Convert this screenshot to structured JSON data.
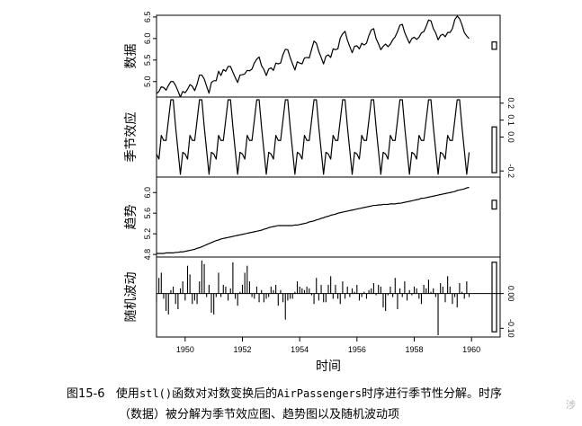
{
  "caption": {
    "fig_no": "图15-6",
    "part1": "使用",
    "code": "stl()",
    "part2": "函数对对数变换后的",
    "code2": "AirPassengers",
    "part3": "时序进行季节性分解。时序",
    "line2": "（数据）被分解为季节效应图、趋势图以及随机波动项"
  },
  "side_char": "涉",
  "chart_data": {
    "type": "line",
    "xlabel": "时间",
    "x_ticks": [
      1950,
      1952,
      1954,
      1956,
      1958,
      1960
    ],
    "xlim": [
      1949,
      1961
    ],
    "panels": [
      {
        "name": "数据",
        "type": "line",
        "ylim": [
          4.64,
          6.54
        ],
        "y_ticks": [
          "5.0",
          "5.5",
          "6.0",
          "6.5"
        ],
        "tick_side": "left",
        "values": [
          4.72,
          4.77,
          4.88,
          4.86,
          4.8,
          4.91,
          5.0,
          5.0,
          4.91,
          4.78,
          4.64,
          4.77,
          4.74,
          4.82,
          4.93,
          4.89,
          4.79,
          4.94,
          5.15,
          5.15,
          5.06,
          4.89,
          4.73,
          4.98,
          5.02,
          5.02,
          5.24,
          5.14,
          5.28,
          5.24,
          5.35,
          5.35,
          5.22,
          5.09,
          4.98,
          5.15,
          5.16,
          5.18,
          5.26,
          5.25,
          5.29,
          5.43,
          5.52,
          5.57,
          5.37,
          5.28,
          5.14,
          5.29,
          5.32,
          5.26,
          5.43,
          5.41,
          5.43,
          5.63,
          5.75,
          5.74,
          5.56,
          5.41,
          5.27,
          5.46,
          5.43,
          5.41,
          5.55,
          5.56,
          5.55,
          5.75,
          5.94,
          5.89,
          5.7,
          5.56,
          5.41,
          5.59,
          5.62,
          5.56,
          5.76,
          5.74,
          5.76,
          6.01,
          6.11,
          6.17,
          5.96,
          5.81,
          5.67,
          5.82,
          5.83,
          5.76,
          5.89,
          5.85,
          5.89,
          6.07,
          6.2,
          6.23,
          6.0,
          5.88,
          5.74,
          5.82,
          5.87,
          5.81,
          5.87,
          5.97,
          6.04,
          6.16,
          6.31,
          6.33,
          6.14,
          6.01,
          5.89,
          6.0,
          6.03,
          5.98,
          6.03,
          6.13,
          6.16,
          6.28,
          6.43,
          6.41,
          6.23,
          6.13,
          5.97,
          6.07,
          6.1,
          6.04,
          6.14,
          6.14,
          6.23,
          6.44,
          6.52,
          6.46,
          6.32,
          6.14,
          6.06,
          6.0
        ],
        "scale_bar": [
          5.75,
          5.92
        ]
      },
      {
        "name": "季节效应",
        "type": "line",
        "ylim": [
          -0.236,
          0.236
        ],
        "y_ticks": [
          "-0.2",
          "0.0",
          "0.1",
          "0.2"
        ],
        "tick_side": "right",
        "values": [
          -0.1,
          -0.13,
          0.01,
          -0.02,
          -0.02,
          0.1,
          0.22,
          0.22,
          0.06,
          -0.08,
          -0.22,
          -0.09,
          -0.1,
          -0.13,
          0.01,
          -0.02,
          -0.02,
          0.1,
          0.22,
          0.22,
          0.06,
          -0.08,
          -0.22,
          -0.09,
          -0.1,
          -0.13,
          0.01,
          -0.02,
          -0.02,
          0.1,
          0.22,
          0.22,
          0.06,
          -0.08,
          -0.22,
          -0.09,
          -0.1,
          -0.13,
          0.01,
          -0.02,
          -0.02,
          0.1,
          0.22,
          0.22,
          0.06,
          -0.08,
          -0.22,
          -0.09,
          -0.1,
          -0.13,
          0.01,
          -0.02,
          -0.02,
          0.1,
          0.22,
          0.22,
          0.06,
          -0.08,
          -0.22,
          -0.09,
          -0.1,
          -0.13,
          0.01,
          -0.02,
          -0.02,
          0.1,
          0.22,
          0.22,
          0.06,
          -0.08,
          -0.22,
          -0.09,
          -0.1,
          -0.13,
          0.01,
          -0.02,
          -0.02,
          0.1,
          0.22,
          0.22,
          0.06,
          -0.08,
          -0.22,
          -0.09,
          -0.1,
          -0.13,
          0.01,
          -0.02,
          -0.02,
          0.1,
          0.22,
          0.22,
          0.06,
          -0.08,
          -0.22,
          -0.09,
          -0.1,
          -0.13,
          0.01,
          -0.02,
          -0.02,
          0.1,
          0.22,
          0.22,
          0.06,
          -0.08,
          -0.22,
          -0.09,
          -0.1,
          -0.13,
          0.01,
          -0.02,
          -0.02,
          0.1,
          0.22,
          0.22,
          0.06,
          -0.08,
          -0.22,
          -0.09,
          -0.1,
          -0.13,
          0.01,
          -0.02,
          -0.02,
          0.1,
          0.22,
          0.22,
          0.06,
          -0.08,
          -0.22,
          -0.09
        ],
        "scale_bar": [
          -0.21,
          0.06
        ]
      },
      {
        "name": "趋势",
        "type": "line",
        "ylim": [
          4.75,
          6.3
        ],
        "y_ticks": [
          "4.8",
          "5.2",
          "5.6",
          "6.0"
        ],
        "tick_side": "left",
        "values": [
          4.82,
          4.82,
          4.82,
          4.82,
          4.83,
          4.83,
          4.83,
          4.83,
          4.84,
          4.84,
          4.85,
          4.85,
          4.86,
          4.87,
          4.88,
          4.89,
          4.9,
          4.92,
          4.93,
          4.95,
          4.97,
          4.99,
          5.01,
          5.03,
          5.05,
          5.07,
          5.08,
          5.1,
          5.11,
          5.12,
          5.13,
          5.14,
          5.15,
          5.16,
          5.17,
          5.18,
          5.19,
          5.2,
          5.21,
          5.22,
          5.23,
          5.24,
          5.25,
          5.26,
          5.27,
          5.29,
          5.3,
          5.32,
          5.33,
          5.34,
          5.35,
          5.36,
          5.36,
          5.36,
          5.36,
          5.36,
          5.36,
          5.36,
          5.37,
          5.37,
          5.38,
          5.39,
          5.4,
          5.41,
          5.43,
          5.44,
          5.45,
          5.47,
          5.48,
          5.5,
          5.51,
          5.53,
          5.54,
          5.56,
          5.57,
          5.58,
          5.6,
          5.61,
          5.62,
          5.63,
          5.64,
          5.65,
          5.66,
          5.67,
          5.68,
          5.69,
          5.7,
          5.71,
          5.72,
          5.73,
          5.74,
          5.75,
          5.75,
          5.76,
          5.76,
          5.77,
          5.77,
          5.77,
          5.78,
          5.78,
          5.78,
          5.79,
          5.79,
          5.8,
          5.81,
          5.82,
          5.83,
          5.84,
          5.85,
          5.86,
          5.87,
          5.89,
          5.89,
          5.9,
          5.91,
          5.92,
          5.93,
          5.94,
          5.95,
          5.96,
          5.97,
          5.98,
          5.99,
          6.0,
          6.01,
          6.02,
          6.04,
          6.05,
          6.06,
          6.07,
          6.09,
          6.1
        ],
        "scale_bar": [
          5.68,
          5.85
        ]
      },
      {
        "name": "随机波动",
        "type": "bar",
        "ylim": [
          -0.125,
          0.105
        ],
        "y_ticks": [
          "-0.10",
          "0.00"
        ],
        "tick_side": "right",
        "values": [
          -0.025,
          0.045,
          0.06,
          -0.015,
          -0.05,
          -0.06,
          0.01,
          0.02,
          -0.03,
          -0.045,
          0.015,
          0.035,
          -0.02,
          0.08,
          0.055,
          -0.03,
          -0.02,
          -0.03,
          0.035,
          0.095,
          0.085,
          -0.01,
          0.025,
          -0.055,
          -0.06,
          -0.01,
          0.06,
          -0.01,
          0.025,
          0.02,
          -0.02,
          0.015,
          0.09,
          -0.015,
          -0.035,
          0.005,
          0.025,
          0.06,
          0.08,
          0.035,
          -0.01,
          -0.015,
          0.02,
          -0.025,
          0.01,
          -0.025,
          -0.015,
          -0.01,
          0.02,
          0.01,
          0.025,
          -0.035,
          0.01,
          -0.025,
          -0.075,
          -0.02,
          -0.015,
          -0.015,
          0.005,
          0.035,
          0.02,
          0.015,
          0.01,
          0.02,
          0.015,
          -0.005,
          -0.03,
          0.045,
          -0.02,
          0.025,
          -0.025,
          -0.025,
          0.025,
          0.05,
          -0.015,
          0.025,
          -0.015,
          -0.03,
          0.035,
          -0.015,
          0.02,
          -0.01,
          0.015,
          0.005,
          0.025,
          -0.02,
          -0.01,
          0.005,
          -0.015,
          0.01,
          0.015,
          0.03,
          -0.005,
          0.025,
          0.02,
          -0.04,
          -0.05,
          -0.005,
          0.02,
          -0.01,
          0.045,
          -0.045,
          0.015,
          -0.01,
          0.035,
          -0.02,
          0.01,
          -0.005,
          0.02,
          0.015,
          -0.015,
          -0.03,
          0.025,
          0.015,
          0.04,
          0.005,
          0.015,
          -0.01,
          -0.12,
          0.03,
          0.02,
          -0.025,
          0.05,
          0.02,
          -0.03,
          -0.01,
          -0.04,
          0.03,
          0.005,
          -0.015,
          0.035,
          -0.01
        ],
        "scale_bar": [
          -0.11,
          0.09
        ]
      }
    ]
  }
}
